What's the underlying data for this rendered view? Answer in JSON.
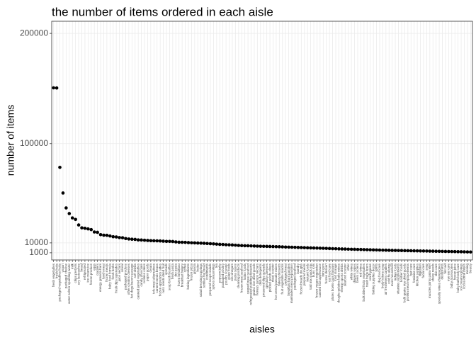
{
  "chart_data": {
    "type": "scatter",
    "title": "the number of items ordered in each aisle",
    "x_label": "aisles",
    "y_label": "number of items",
    "color": "#000000",
    "grid": true,
    "ylim": [
      -5500,
      211000
    ],
    "yticks": [
      1000,
      10000,
      100000,
      200000
    ],
    "categories": [
      "fresh vegetables",
      "fresh fruits",
      "packaged vegetables fruits",
      "yogurt",
      "packaged cheese",
      "water seltzer sparkling water",
      "milk",
      "chips pretzels",
      "soy lactosefree",
      "bread",
      "refrigerated",
      "ice cream ice",
      "frozen produce",
      "eggs",
      "crackers",
      "energy granola bars",
      "lunch meat",
      "frozen meals",
      "baby food formula",
      "fresh herbs",
      "fresh dips tapenades",
      "juice nectars",
      "cereal",
      "packaged produce",
      "other creams cheeses",
      "hot dogs bacon sausage",
      "soft drinks",
      "canned jarred vegetables",
      "candy chocolate",
      "cookies cakes",
      "paper goods",
      "cream",
      "tofu meat alternatives",
      "canned meals beans",
      "frozen appetizers sides",
      "nuts seeds dried fruit",
      "spreads",
      "soup broth bouillon",
      "fresh pasta",
      "dry pasta",
      "frozen breakfast",
      "breakfast bakery",
      "coffee",
      "baking ingredients",
      "frozen pizza",
      "granola",
      "butter",
      "salad dressing toppings",
      "tortillas flat bread",
      "condiments",
      "prepared soups salads",
      "spices seasonings",
      "tea",
      "popcorn jerky",
      "packaged poultry",
      "poultry counter",
      "asian foods",
      "oils vinegars",
      "pasta sauce",
      "cleaning products",
      "frozen meat seafood",
      "latino foods",
      "canned meat seafood",
      "refrigerated pudding desserts",
      "grains rice dried goods",
      "honeys syrups nectars",
      "dish detergents",
      "preserved dips spreads",
      "specialty cheeses",
      "pickled goods olives",
      "meat counter",
      "hot cereal pancake mixes",
      "bakery desserts",
      "fruit vegetable snacks",
      "packaged meat",
      "breakfast bars pastries",
      "marinades meat preparation",
      "packaged seafood",
      "laundry",
      "frozen breads doughs",
      "prepared meals",
      "instant foods",
      "trail mix snack mix",
      "buns rolls",
      "frozen vegan vegetarian",
      "canned fruit applesauce",
      "mint gum",
      "frozen dessert",
      "cat food care",
      "plates bowls cups flatware",
      "food storage",
      "doughs gelatins bake mixes",
      "energy sports drinks",
      "seafood counter",
      "other",
      "white wines",
      "diapers wipes",
      "beers coolers",
      "red wines",
      "bulk dried fruits vegetables",
      "trash bags liners",
      "oral hygiene",
      "baking supplies decor",
      "spirits",
      "dog food care",
      "body lotions soap",
      "air fresheners candles",
      "cold flu allergy",
      "more household",
      "indian foods",
      "vitamins supplements",
      "kosher foods",
      "bulk grains rice dried goods",
      "protein meal replacements",
      "hair care",
      "feminine care",
      "kitchen supplies",
      "digestion",
      "facial care",
      "soap",
      "muscles joints pain relief",
      "shave needs",
      "skin care",
      "specialty wines champagnes",
      "deodorants",
      "first aid",
      "eye ear care",
      "baby accessories",
      "frozen juice",
      "baby bath body care",
      "ice cream toppings",
      "cocoa drink mixes",
      "missing",
      "beauty"
    ],
    "values": [
      150609,
      150473,
      78493,
      55240,
      41699,
      36617,
      32644,
      31269,
      26240,
      23635,
      23228,
      22676,
      22027,
      19875,
      19592,
      17448,
      16957,
      16838,
      16253,
      15567,
      15353,
      14801,
      14634,
      13914,
      13522,
      13313,
      13156,
      12679,
      12596,
      12410,
      12204,
      11982,
      11911,
      11841,
      11736,
      11538,
      11352,
      11329,
      11223,
      10863,
      10598,
      10547,
      10446,
      10263,
      10078,
      9961,
      9848,
      9719,
      9627,
      9438,
      9257,
      9102,
      8852,
      8670,
      8553,
      8312,
      8218,
      8110,
      7916,
      7697,
      7532,
      7418,
      7385,
      7231,
      7140,
      7028,
      6935,
      6871,
      6806,
      6726,
      6655,
      6544,
      6487,
      6362,
      6201,
      6140,
      6070,
      5946,
      5857,
      5752,
      5648,
      5530,
      5437,
      5363,
      5286,
      5176,
      5095,
      4986,
      4875,
      4769,
      4663,
      4574,
      4491,
      4396,
      4302,
      4218,
      4147,
      4063,
      3985,
      3902,
      3815,
      3727,
      3642,
      3571,
      3489,
      3418,
      3347,
      3284,
      3210,
      3145,
      3082,
      3024,
      2965,
      2904,
      2848,
      2791,
      2733,
      2681,
      2625,
      2572,
      2518,
      2463,
      2408,
      2351,
      2296,
      2240,
      2183,
      2124,
      2062,
      1998,
      1932,
      1865,
      1794,
      1720
    ]
  }
}
